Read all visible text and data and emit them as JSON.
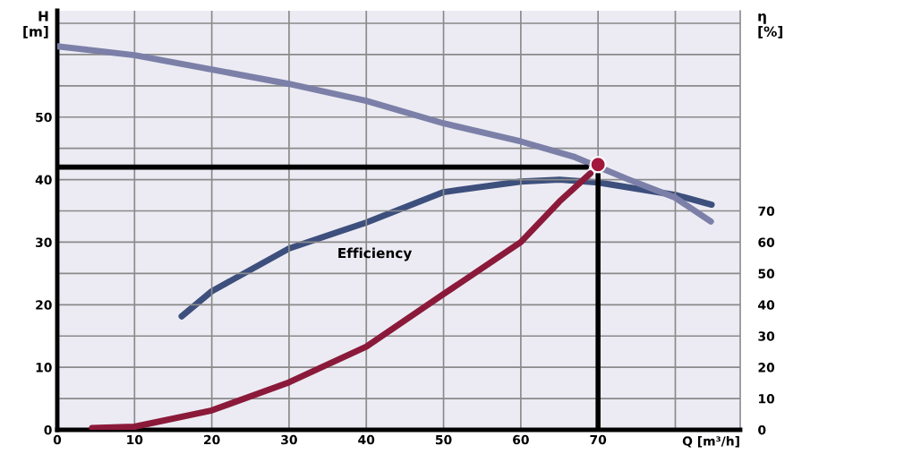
{
  "chart_data": {
    "type": "line",
    "xlabel": "Q [m³/h]",
    "ylabel": "H\n[m]",
    "y2label": "η\n[%]",
    "xlim": [
      0,
      88.4
    ],
    "ylim": [
      0,
      67
    ],
    "y2lim": [
      0,
      134
    ],
    "xticks": [
      0,
      10,
      20,
      30,
      40,
      50,
      60,
      70,
      {
        "value": 80,
        "label": null
      }
    ],
    "yticks": [
      0,
      {
        "value": 5,
        "label": null
      },
      10,
      {
        "value": 15,
        "label": null
      },
      20,
      {
        "value": 25,
        "label": null
      },
      30,
      {
        "value": 35,
        "label": null
      },
      40,
      {
        "value": 45,
        "label": null
      },
      50,
      {
        "value": 55,
        "label": null
      },
      {
        "value": 60,
        "label": null
      },
      {
        "value": 65,
        "label": null
      }
    ],
    "y2ticks": [
      0,
      10,
      20,
      30,
      40,
      50,
      60,
      70
    ],
    "grid": true,
    "marker": "none",
    "line_style": "solid",
    "annotations": [
      "Efficiency"
    ],
    "series": [
      {
        "color": "#7c80a8",
        "x": [
          0,
          10,
          20,
          30,
          40,
          50,
          60,
          67,
          74,
          80,
          84.6
        ],
        "values": [
          61.3,
          59.9,
          57.6,
          55.3,
          52.6,
          49,
          46.1,
          43.6,
          40,
          37.1,
          33.3
        ]
      },
      {
        "color": "#3d4f7c",
        "axis": "y2",
        "x": [
          16.1,
          20,
          30,
          40,
          50,
          60,
          65,
          70,
          80,
          84.7
        ],
        "values": [
          36.3,
          44.3,
          58,
          66.3,
          76,
          79.4,
          80,
          79.1,
          75.1,
          72
        ]
      },
      {
        "color": "#8b1a3a",
        "x": [
          4.5,
          10,
          20,
          30,
          40,
          50,
          60,
          65,
          69
        ],
        "values": [
          0.3,
          0.5,
          3.1,
          7.6,
          13.3,
          21.7,
          30,
          36.5,
          41
        ]
      },
      {
        "color": "#000000",
        "x": [
          0,
          68.5,
          69,
          70,
          70
        ],
        "values": [
          42,
          42,
          null,
          40.8,
          0
        ]
      },
      {
        "type": "scatter",
        "marker": "circle",
        "color": "#a3173d",
        "x": [
          70
        ],
        "values": [
          42.4
        ]
      }
    ]
  }
}
